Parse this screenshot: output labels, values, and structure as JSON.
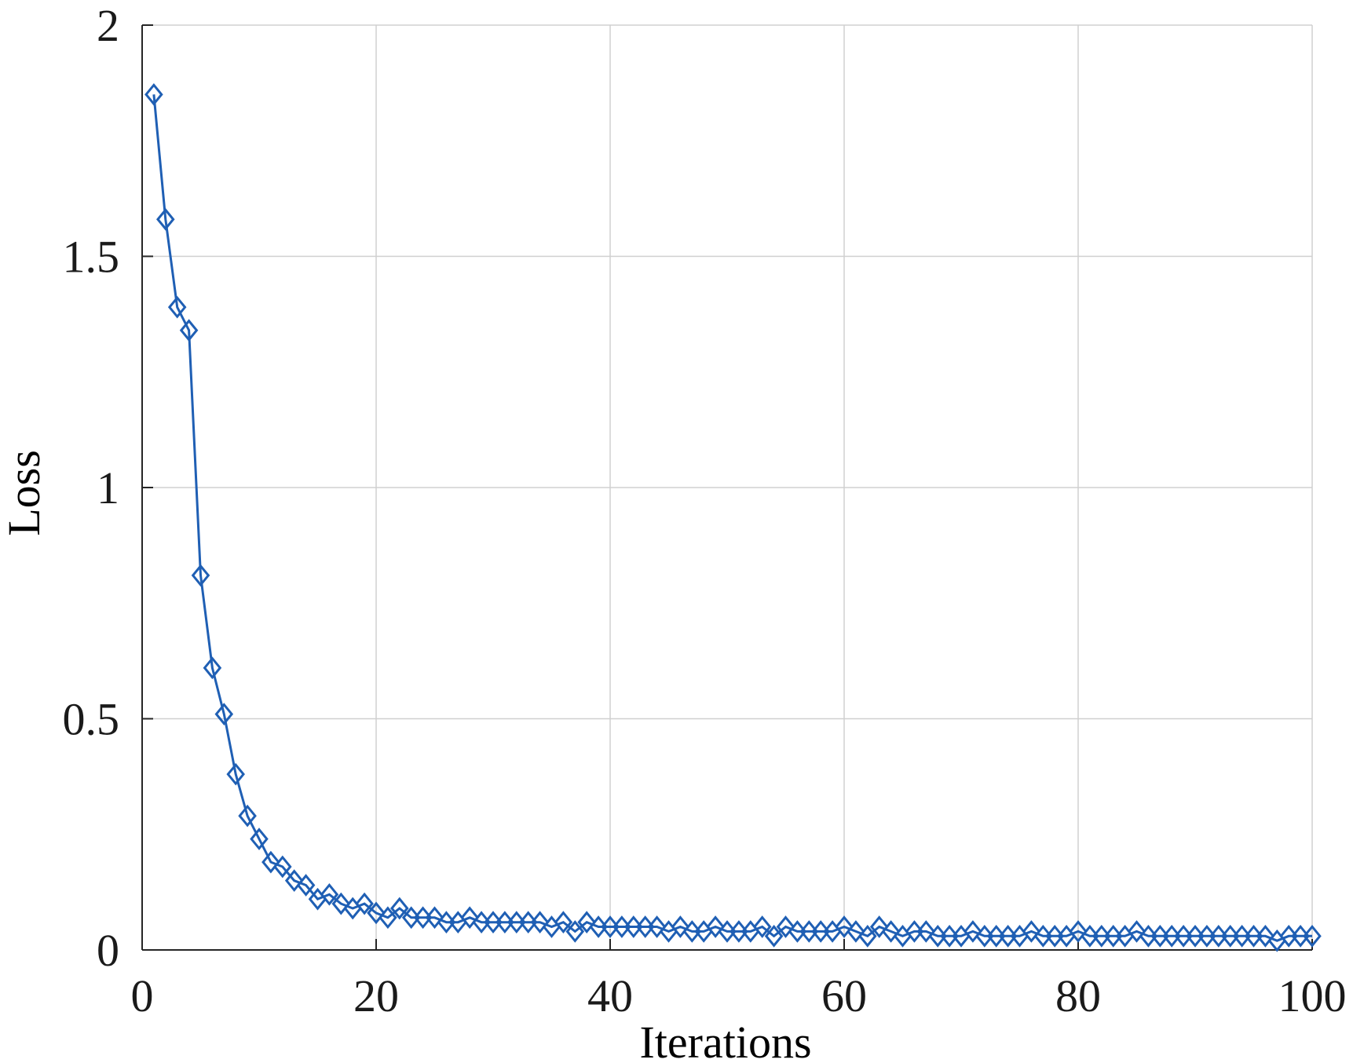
{
  "chart_data": {
    "type": "line",
    "xlabel": "Iterations",
    "ylabel": "Loss",
    "xlim": [
      0,
      100
    ],
    "ylim": [
      0,
      2
    ],
    "xticks": [
      0,
      20,
      40,
      60,
      80,
      100
    ],
    "yticks": [
      0,
      0.5,
      1,
      1.5,
      2
    ],
    "xtick_labels": [
      "0",
      "20",
      "40",
      "60",
      "80",
      "100"
    ],
    "ytick_labels": [
      "0",
      "0.5",
      "1",
      "1.5",
      "2"
    ],
    "grid": true,
    "marker": "diamond",
    "series_color": "#1f5fb4",
    "series": [
      {
        "x": [
          1,
          2,
          3,
          4,
          5,
          6,
          7,
          8,
          9,
          10,
          11,
          12,
          13,
          14,
          15,
          16,
          17,
          18,
          19,
          20,
          21,
          22,
          23,
          24,
          25,
          26,
          27,
          28,
          29,
          30,
          31,
          32,
          33,
          34,
          35,
          36,
          37,
          38,
          39,
          40,
          41,
          42,
          43,
          44,
          45,
          46,
          47,
          48,
          49,
          50,
          51,
          52,
          53,
          54,
          55,
          56,
          57,
          58,
          59,
          60,
          61,
          62,
          63,
          64,
          65,
          66,
          67,
          68,
          69,
          70,
          71,
          72,
          73,
          74,
          75,
          76,
          77,
          78,
          79,
          80,
          81,
          82,
          83,
          84,
          85,
          86,
          87,
          88,
          89,
          90,
          91,
          92,
          93,
          94,
          95,
          96,
          97,
          98,
          99,
          100
        ],
        "values": [
          1.85,
          1.58,
          1.39,
          1.34,
          0.81,
          0.61,
          0.51,
          0.38,
          0.29,
          0.24,
          0.19,
          0.18,
          0.15,
          0.14,
          0.11,
          0.12,
          0.1,
          0.09,
          0.1,
          0.08,
          0.07,
          0.09,
          0.07,
          0.07,
          0.07,
          0.06,
          0.06,
          0.07,
          0.06,
          0.06,
          0.06,
          0.06,
          0.06,
          0.06,
          0.05,
          0.06,
          0.04,
          0.06,
          0.05,
          0.05,
          0.05,
          0.05,
          0.05,
          0.05,
          0.04,
          0.05,
          0.04,
          0.04,
          0.05,
          0.04,
          0.04,
          0.04,
          0.05,
          0.03,
          0.05,
          0.04,
          0.04,
          0.04,
          0.04,
          0.05,
          0.04,
          0.03,
          0.05,
          0.04,
          0.03,
          0.04,
          0.04,
          0.03,
          0.03,
          0.03,
          0.04,
          0.03,
          0.03,
          0.03,
          0.03,
          0.04,
          0.03,
          0.03,
          0.03,
          0.04,
          0.03,
          0.03,
          0.03,
          0.03,
          0.04,
          0.03,
          0.03,
          0.03,
          0.03,
          0.03,
          0.03,
          0.03,
          0.03,
          0.03,
          0.03,
          0.03,
          0.02,
          0.03,
          0.03,
          0.03
        ]
      }
    ]
  }
}
